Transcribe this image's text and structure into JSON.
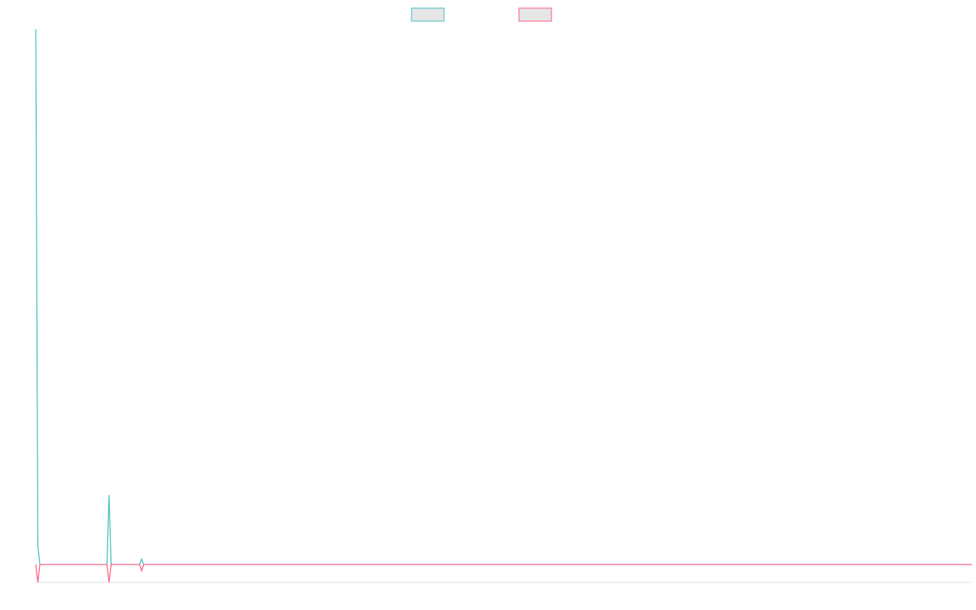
{
  "chart_data": {
    "type": "line",
    "x": [
      0,
      1,
      2,
      35,
      36,
      37,
      51,
      52,
      53,
      460
    ],
    "series": [
      {
        "color": "#4bc0c0",
        "values": [
          30,
          1.1,
          0,
          0,
          3.9,
          0,
          0,
          0.3,
          0,
          0
        ]
      },
      {
        "color": "#ff6384",
        "values": [
          0,
          -1,
          0,
          0,
          -1,
          0,
          0,
          -0.36,
          0,
          0
        ]
      }
    ],
    "xlim": [
      0,
      460
    ],
    "ylim": [
      -1,
      30
    ],
    "legend": "top"
  }
}
